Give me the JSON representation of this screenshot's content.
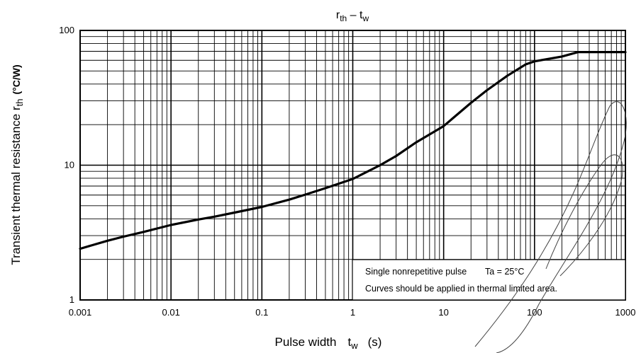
{
  "chart_data": {
    "type": "line",
    "title": {
      "main": "r",
      "sub": "th",
      "sep": " – ",
      "main2": "t",
      "sub2": "w"
    },
    "xlabel": {
      "text": "Pulse width",
      "sym": "t",
      "sub": "w",
      "unit": "(s)"
    },
    "ylabel": {
      "text": "Transient thermal resistance r",
      "sub": "th",
      "unit": "(°C/W)"
    },
    "x_scale": "log",
    "y_scale": "log",
    "xlim": [
      0.001,
      1000
    ],
    "ylim": [
      1,
      100
    ],
    "x_ticks": [
      "0.001",
      "0.01",
      "0.1",
      "1",
      "10",
      "100",
      "1000"
    ],
    "y_ticks": [
      "1",
      "10",
      "100"
    ],
    "grid": true,
    "series": [
      {
        "x": [
          0.001,
          0.002,
          0.003,
          0.005,
          0.01,
          0.02,
          0.03,
          0.05,
          0.1,
          0.2,
          0.3,
          0.5,
          1,
          2,
          3,
          5,
          10,
          20,
          30,
          50,
          80,
          100,
          200,
          300,
          500,
          1000
        ],
        "y": [
          2.4,
          2.75,
          2.95,
          3.2,
          3.6,
          3.95,
          4.15,
          4.45,
          4.9,
          5.55,
          6.05,
          6.75,
          7.9,
          10.0,
          11.7,
          14.8,
          19.5,
          29.0,
          36.0,
          46.0,
          56.0,
          59.0,
          64.0,
          69.0,
          69.0,
          69.0
        ]
      }
    ],
    "annotation": {
      "line1": "Single nonrepetitive pulse",
      "ta": "Ta = 25°C",
      "line2": "Curves should be applied in thermal limited area."
    }
  }
}
